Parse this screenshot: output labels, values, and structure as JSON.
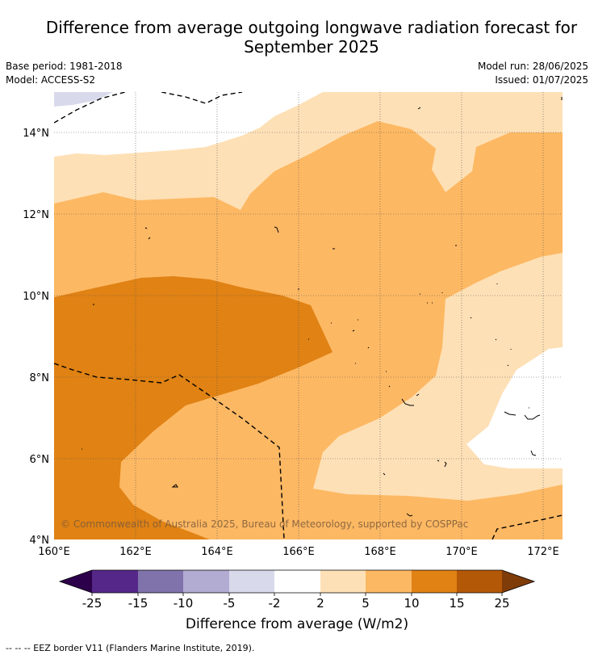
{
  "title_line1": "Difference from average outgoing longwave radiation forecast for",
  "title_line2": "September 2025",
  "base_period": "Base period: 1981-2018",
  "model": "Model: ACCESS-S2",
  "model_run": "Model run: 28/06/2025",
  "issued": "Issued: 01/07/2025",
  "copyright": "© Commonwealth of Australia 2025, Bureau of Meteorology, supported by COSPPac",
  "map": {
    "lat_ticks": [
      "14°N",
      "12°N",
      "10°N",
      "8°N",
      "6°N",
      "4°N"
    ],
    "lon_ticks": [
      "160°E",
      "162°E",
      "164°E",
      "166°E",
      "168°E",
      "170°E",
      "172°E"
    ]
  },
  "colorbar": {
    "tick_labels": [
      "-25",
      "-15",
      "-10",
      "-5",
      "-2",
      "2",
      "5",
      "10",
      "15",
      "25"
    ],
    "colors": {
      "extend_low": "#2d004b",
      "b1": "#542788",
      "b2": "#8073ac",
      "b3": "#b2abd2",
      "b4": "#d8daeb",
      "b5": "#ffffff",
      "b6": "#fee0b6",
      "b7": "#fdb863",
      "b8": "#e08214",
      "b9": "#b35806",
      "extend_high": "#7f3b08"
    },
    "label": "Difference from average (W/m2)"
  },
  "legend_text": "--  --  -- EEZ border V11 (Flanders Marine Institute, 2019)."
}
